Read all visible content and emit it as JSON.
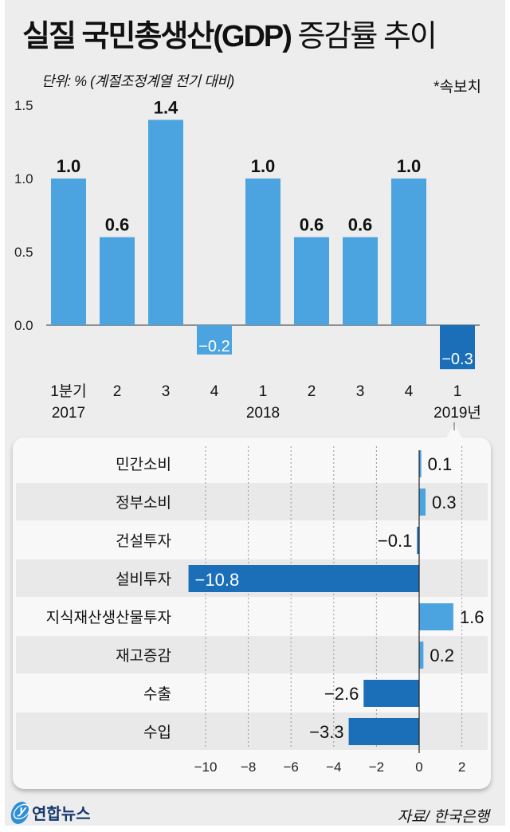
{
  "title_bold": "실질 국민총생산(GDP)",
  "title_light": "증감률 추이",
  "unit": "단위: % (계절조정계열 전기 대비)",
  "note": "*속보치",
  "source": "자료/ 한국은행",
  "logo": "연합뉴스",
  "colors": {
    "light_bar": "#4ba4e0",
    "dark_bar": "#1a6fb8",
    "background": "#ededed"
  },
  "chart_data": [
    {
      "type": "bar",
      "title": "",
      "ylim": [
        -0.3,
        1.5
      ],
      "yticks": [
        "0.0",
        "0.5",
        "1.0",
        "1.5"
      ],
      "categories": [
        "1분기",
        "2",
        "3",
        "4",
        "1",
        "2",
        "3",
        "4",
        "1"
      ],
      "year_labels": [
        "2017",
        "",
        "",
        "",
        "2018",
        "",
        "",
        "",
        "2019년"
      ],
      "values": [
        1.0,
        0.6,
        1.4,
        -0.2,
        1.0,
        0.6,
        0.6,
        1.0,
        -0.3
      ],
      "value_labels": [
        "1.0",
        "0.6",
        "1.4",
        "−0.2",
        "1.0",
        "0.6",
        "0.6",
        "1.0",
        "−0.3"
      ],
      "highlight_last": true
    },
    {
      "type": "bar",
      "orientation": "horizontal",
      "xlim": [
        -11,
        2.5
      ],
      "xticks": [
        "−10",
        "−8",
        "−6",
        "−4",
        "−2",
        "0",
        "2"
      ],
      "grid": true,
      "categories": [
        "민간소비",
        "정부소비",
        "건설투자",
        "설비투자",
        "지식재산생산물투자",
        "재고증감",
        "수출",
        "수입"
      ],
      "values": [
        0.1,
        0.3,
        -0.1,
        -10.8,
        1.6,
        0.2,
        -2.6,
        -3.3
      ],
      "value_labels": [
        "0.1",
        "0.3",
        "−0.1",
        "−10.8",
        "1.6",
        "0.2",
        "−2.6",
        "−3.3"
      ]
    }
  ]
}
